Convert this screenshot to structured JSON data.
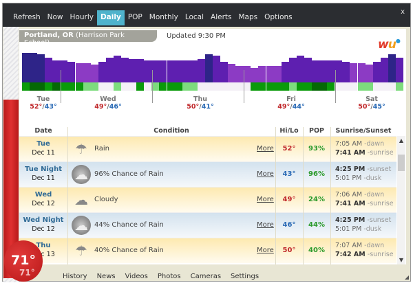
{
  "tabs": [
    "Refresh",
    "Now",
    "Hourly",
    "Daily",
    "POP",
    "Monthly",
    "Local",
    "Alerts",
    "Maps",
    "Options"
  ],
  "active_tab": "Daily",
  "close_label": "x",
  "location": {
    "city": "Portland, OR",
    "station": "(Harrison Park School)"
  },
  "updated": "Updated 9:30 PM",
  "logo": "wu",
  "current_temp": "71°",
  "current_feels": "71°",
  "colors": {
    "hi": "#c0282b",
    "lo": "#2a6ab5",
    "pop": "#2c9a2c",
    "accent": "#4fb3cc"
  },
  "hourly_bar_levels": [
    100,
    100,
    95,
    84,
    75,
    75,
    70,
    65,
    65,
    60,
    70,
    84,
    90,
    84,
    80,
    80,
    75,
    75,
    75,
    75,
    75,
    75,
    75,
    80,
    95,
    90,
    70,
    62,
    55,
    55,
    50,
    55,
    55,
    55,
    70,
    84,
    90,
    84,
    75,
    75,
    75,
    75,
    70,
    65,
    65,
    60,
    70,
    84,
    95,
    84
  ],
  "hourly_bar_shades": [
    2,
    2,
    2,
    1,
    1,
    1,
    1,
    0,
    0,
    0,
    1,
    1,
    1,
    1,
    1,
    1,
    1,
    1,
    1,
    1,
    1,
    1,
    1,
    1,
    2,
    1,
    1,
    0,
    0,
    0,
    0,
    0,
    0,
    0,
    1,
    1,
    1,
    1,
    1,
    1,
    1,
    1,
    1,
    0,
    0,
    0,
    1,
    1,
    2,
    1
  ],
  "hourly_pop_levels": [
    2,
    3,
    3,
    2,
    3,
    2,
    2,
    2,
    1,
    1,
    0,
    0,
    1,
    0,
    0,
    2,
    0,
    1,
    2,
    2,
    2,
    1,
    1,
    0,
    0,
    0,
    0,
    0,
    0,
    0,
    2,
    2,
    2,
    2,
    2,
    1,
    2,
    2,
    3,
    3,
    2,
    0,
    0,
    0,
    1,
    1,
    0,
    0,
    0,
    1
  ],
  "days": [
    {
      "label": "Tue",
      "hi": "52°",
      "lo": "43°"
    },
    {
      "label": "Wed",
      "hi": "49°",
      "lo": "46°"
    },
    {
      "label": "Thu",
      "hi": "50°",
      "lo": "41°"
    },
    {
      "label": "Fri",
      "hi": "49°",
      "lo": "44°"
    },
    {
      "label": "Sat",
      "hi": "50°",
      "lo": "45°"
    }
  ],
  "table": {
    "headers": [
      "Date",
      "Condition",
      "Hi/Lo",
      "POP",
      "Sunrise/Sunset"
    ],
    "more_label": "More",
    "rows": [
      {
        "type": "day",
        "name": "Tue",
        "date": "Dec 11",
        "icon": "rain-icon",
        "condition": "Rain",
        "temp": "52°",
        "pop": "93%",
        "t1": "7:05 AM",
        "l1": "-dawn",
        "t2": "7:41 AM",
        "l2": "-sunrise"
      },
      {
        "type": "night",
        "name": "Tue Night",
        "date": "Dec 11",
        "icon": "night-rain-icon",
        "condition": "96% Chance of Rain",
        "temp": "43°",
        "pop": "96%",
        "t1": "4:25 PM",
        "l1": "-sunset",
        "t2": "5:01 PM",
        "l2": "-dusk"
      },
      {
        "type": "day",
        "name": "Wed",
        "date": "Dec 12",
        "icon": "cloudy-icon",
        "condition": "Cloudy",
        "temp": "49°",
        "pop": "24%",
        "t1": "7:06 AM",
        "l1": "-dawn",
        "t2": "7:41 AM",
        "l2": "-sunrise"
      },
      {
        "type": "night",
        "name": "Wed Night",
        "date": "Dec 12",
        "icon": "night-rain-icon",
        "condition": "44% Chance of Rain",
        "temp": "46°",
        "pop": "44%",
        "t1": "4:25 PM",
        "l1": "-sunset",
        "t2": "5:01 PM",
        "l2": "-dusk"
      },
      {
        "type": "day",
        "name": "Thu",
        "date": "Dec 13",
        "icon": "rain-icon",
        "condition": "40% Chance of Rain",
        "temp": "50°",
        "pop": "40%",
        "t1": "7:07 AM",
        "l1": "-dawn",
        "t2": "7:42 AM",
        "l2": "-sunrise"
      }
    ]
  },
  "bottom_nav": [
    "History",
    "News",
    "Videos",
    "Photos",
    "Cameras",
    "Settings"
  ]
}
